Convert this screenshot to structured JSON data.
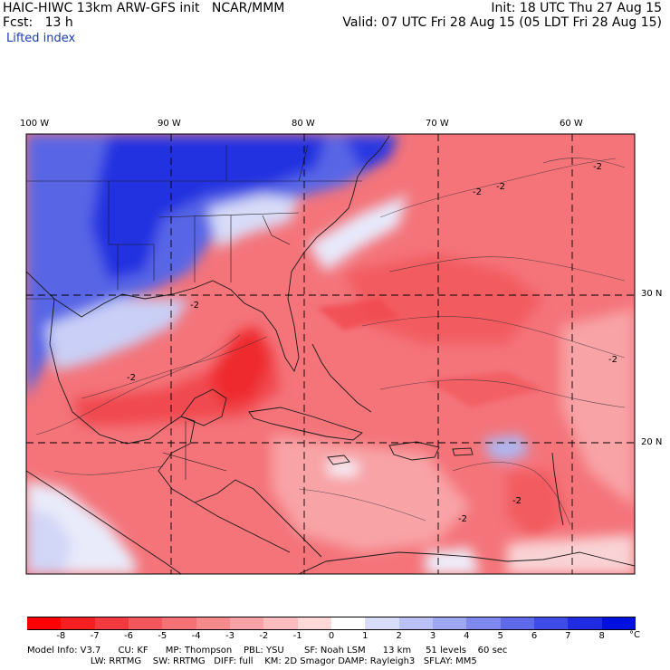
{
  "header": {
    "left_line1": "HAIC-HIWC 13km ARW-GFS init   NCAR/MMM",
    "left_line2": "Fcst:   13 h",
    "field_name": "Lifted index",
    "right_line1": "Init: 18 UTC Thu 27 Aug 15",
    "right_line2": "Valid: 07 UTC Fri 28 Aug 15 (05 LDT Fri 28 Aug 15)"
  },
  "map": {
    "lon_labels": [
      "100 W",
      "90 W",
      "80 W",
      "70 W",
      "60 W"
    ],
    "lat_labels": [
      "30 N",
      "20 N"
    ],
    "contour_label": "-2",
    "colors": {
      "deep_blue": "#2430e0",
      "mid_blue": "#6a78e8",
      "pale_blue": "#c9cff6",
      "red_main": "#f4747a",
      "red_light": "#f8a3a6",
      "red_strong": "#f04a50",
      "red_peak": "#ee2a2e",
      "coast": "#1a1a1a",
      "grid": "#000000"
    }
  },
  "colorbar": {
    "unit": "°C",
    "ticks": [
      "-8",
      "-7",
      "-6",
      "-5",
      "-4",
      "-3",
      "-2",
      "-1",
      "0",
      "1",
      "2",
      "3",
      "4",
      "5",
      "6",
      "7",
      "8"
    ],
    "colors": [
      "#ff0000",
      "#f51f22",
      "#f23a3e",
      "#f2575b",
      "#f47276",
      "#f58a8d",
      "#f7a3a6",
      "#fabcbe",
      "#fdd9da",
      "#ffffff",
      "#d9dcf9",
      "#bcc1f5",
      "#9fa6f1",
      "#7f88ed",
      "#5f6aea",
      "#3f4be6",
      "#1f2ce2",
      "#0010de"
    ]
  },
  "model_info": {
    "line1": "Model Info: V3.7      CU: KF      MP: Thompson    PBL: YSU       SF: Noah LSM      13 km     51 levels    60 sec",
    "line2": "                      LW: RRTMG    SW: RRTMG   DIFF: full    KM: 2D Smagor DAMP: Rayleigh3   SFLAY: MM5"
  }
}
